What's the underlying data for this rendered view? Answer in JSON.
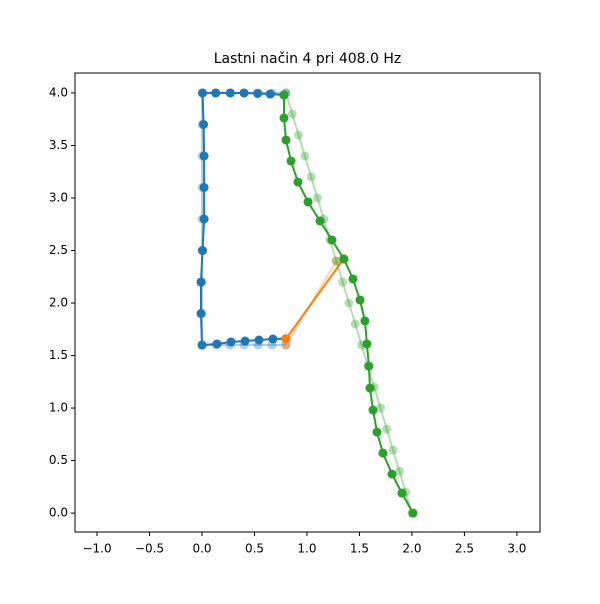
{
  "chart_data": {
    "type": "line",
    "title": "Lastni način 4 pri 408.0 Hz",
    "xlim": [
      -1.21,
      3.22
    ],
    "ylim": [
      -0.18,
      4.19
    ],
    "xticks": [
      {
        "value": -1.0,
        "label": "−1.0"
      },
      {
        "value": -0.5,
        "label": "−0.5"
      },
      {
        "value": 0.0,
        "label": "0.0"
      },
      {
        "value": 0.5,
        "label": "0.5"
      },
      {
        "value": 1.0,
        "label": "1.0"
      },
      {
        "value": 1.5,
        "label": "1.5"
      },
      {
        "value": 2.0,
        "label": "2.0"
      },
      {
        "value": 2.5,
        "label": "2.5"
      },
      {
        "value": 3.0,
        "label": "3.0"
      }
    ],
    "yticks": [
      {
        "value": 0.0,
        "label": "0.0"
      },
      {
        "value": 0.5,
        "label": "0.5"
      },
      {
        "value": 1.0,
        "label": "1.0"
      },
      {
        "value": 1.5,
        "label": "1.5"
      },
      {
        "value": 2.0,
        "label": "2.0"
      },
      {
        "value": 2.5,
        "label": "2.5"
      },
      {
        "value": 3.0,
        "label": "3.0"
      },
      {
        "value": 3.5,
        "label": "3.5"
      },
      {
        "value": 4.0,
        "label": "4.0"
      }
    ],
    "series": [
      {
        "color": "#1f77b4",
        "opacity": 0.35,
        "x": [
          0.8,
          0.667,
          0.533,
          0.4,
          0.267,
          0.133,
          0,
          0,
          0,
          0,
          0,
          0,
          0,
          0,
          0,
          0.133,
          0.267,
          0.4,
          0.533,
          0.667,
          0.8
        ],
        "values": [
          1.6,
          1.6,
          1.6,
          1.6,
          1.6,
          1.6,
          1.6,
          1.9,
          2.2,
          2.5,
          2.8,
          3.1,
          3.4,
          3.7,
          4.0,
          4.0,
          4.0,
          4.0,
          4.0,
          4.0,
          4.0
        ]
      },
      {
        "color": "#1f77b4",
        "opacity": 1,
        "x": [
          0.8,
          0.676,
          0.543,
          0.41,
          0.276,
          0.143,
          0,
          -0.01,
          -0.01,
          0.005,
          0.02,
          0.02,
          0.02,
          0.015,
          0.005,
          0.13,
          0.27,
          0.4,
          0.53,
          0.65,
          0.78
        ],
        "values": [
          1.66,
          1.657,
          1.648,
          1.638,
          1.629,
          1.61,
          1.6,
          1.9,
          2.2,
          2.5,
          2.8,
          3.1,
          3.4,
          3.7,
          4.0,
          4.0,
          4.0,
          4.0,
          3.995,
          3.99,
          3.98
        ]
      },
      {
        "color": "#ff7f0e",
        "opacity": 0.35,
        "x": [
          0.8,
          1.28
        ],
        "values": [
          1.6,
          2.4
        ]
      },
      {
        "color": "#ff7f0e",
        "opacity": 1,
        "x": [
          0.8,
          1.35
        ],
        "values": [
          1.66,
          2.42
        ]
      },
      {
        "color": "#2ca02c",
        "opacity": 0.35,
        "x": [
          0.8,
          0.86,
          0.92,
          0.98,
          1.04,
          1.1,
          1.16,
          1.22,
          1.28,
          1.34,
          1.4,
          1.46,
          1.52,
          1.58,
          1.64,
          1.7,
          1.76,
          1.82,
          1.88,
          1.94,
          2.0
        ],
        "values": [
          4.0,
          3.8,
          3.6,
          3.4,
          3.2,
          3.0,
          2.8,
          2.6,
          2.4,
          2.2,
          2.0,
          1.8,
          1.6,
          1.4,
          1.2,
          1.0,
          0.8,
          0.6,
          0.4,
          0.2,
          0.0
        ]
      },
      {
        "color": "#2ca02c",
        "opacity": 1,
        "x": [
          0.781,
          0.781,
          0.8,
          0.848,
          0.914,
          1.01,
          1.124,
          1.238,
          1.352,
          1.438,
          1.505,
          1.552,
          1.571,
          1.59,
          1.6,
          1.629,
          1.667,
          1.724,
          1.81,
          1.905,
          2.01
        ],
        "values": [
          3.981,
          3.762,
          3.552,
          3.352,
          3.152,
          2.962,
          2.781,
          2.6,
          2.419,
          2.229,
          2.029,
          1.829,
          1.61,
          1.4,
          1.19,
          0.981,
          0.771,
          0.571,
          0.371,
          0.19,
          0.0
        ]
      }
    ]
  }
}
